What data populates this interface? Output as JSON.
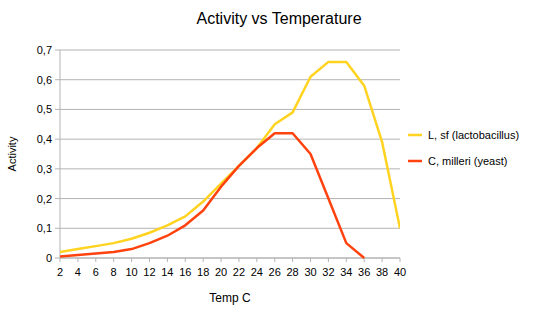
{
  "chart_data": {
    "type": "line",
    "title": "Activity vs Temperature",
    "x_label": "Temp C",
    "y_label": "Activity",
    "x": [
      2,
      4,
      6,
      8,
      10,
      12,
      14,
      16,
      18,
      20,
      22,
      24,
      26,
      28,
      30,
      32,
      34,
      36,
      38,
      40
    ],
    "xlim": [
      2,
      40
    ],
    "xticks": [
      2,
      4,
      6,
      8,
      10,
      12,
      14,
      16,
      18,
      20,
      22,
      24,
      26,
      28,
      30,
      32,
      34,
      36,
      38,
      40
    ],
    "ylim": [
      0,
      0.7
    ],
    "yticks": [
      0,
      {
        "value": 0.1,
        "label": "0,1"
      },
      {
        "value": 0.2,
        "label": "0,2"
      },
      {
        "value": 0.3,
        "label": "0,3"
      },
      {
        "value": 0.4,
        "label": "0,4"
      },
      {
        "value": 0.5,
        "label": "0,5"
      },
      {
        "value": 0.6,
        "label": "0,6"
      },
      {
        "value": 0.7,
        "label": "0,7"
      }
    ],
    "grid": true,
    "legend": "right",
    "series": [
      {
        "name": "L, sf (lactobacillus)",
        "color": "#ffd320",
        "values": [
          0.02,
          0.03,
          0.04,
          0.05,
          0.065,
          0.085,
          0.11,
          0.14,
          0.19,
          0.25,
          0.31,
          0.37,
          0.45,
          0.49,
          0.61,
          0.66,
          0.66,
          0.58,
          0.39,
          0.1
        ]
      },
      {
        "name": "C, milleri (yeast)",
        "color": "#ff420e",
        "values": [
          0.005,
          0.01,
          0.015,
          0.02,
          0.03,
          0.05,
          0.075,
          0.11,
          0.16,
          0.24,
          0.31,
          0.37,
          0.42,
          0.42,
          0.35,
          0.2,
          0.05,
          0,
          null,
          null
        ]
      }
    ]
  }
}
